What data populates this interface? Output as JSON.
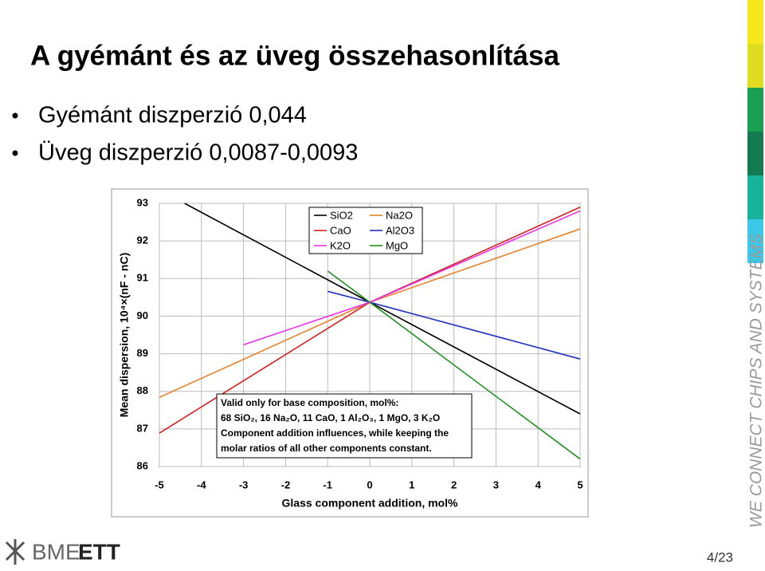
{
  "slide": {
    "title": "A gyémánt és az üveg összehasonlítása",
    "bullets": [
      "Gyémánt diszperzió 0,044",
      "Üveg diszperzió 0,0087-0,0093"
    ],
    "tagline": "WE CONNECT CHIPS AND SYSTEMS",
    "logo": [
      "BME",
      "ETT"
    ],
    "page": "4/23"
  },
  "chart_data": {
    "type": "line",
    "xlabel": "Glass component addition, mol%",
    "ylabel": "Mean dispersion, 10⁴×(nF - nC)",
    "xlim": [
      -5,
      5
    ],
    "ylim": [
      86,
      93
    ],
    "xticks": [
      -5,
      -4,
      -3,
      -2,
      -1,
      0,
      1,
      2,
      3,
      4,
      5
    ],
    "yticks": [
      86,
      87,
      88,
      89,
      90,
      91,
      92,
      93
    ],
    "grid": true,
    "series": [
      {
        "name": "SiO2",
        "color": "#000000",
        "x": [
          -4.4,
          0,
          5
        ],
        "values": [
          93.0,
          90.37,
          87.4
        ]
      },
      {
        "name": "Na2O",
        "color": "#e8822a",
        "x": [
          -5,
          0,
          5
        ],
        "values": [
          87.84,
          90.37,
          92.32
        ]
      },
      {
        "name": "CaO",
        "color": "#d42020",
        "x": [
          -5,
          0,
          5
        ],
        "values": [
          86.89,
          90.37,
          92.9
        ]
      },
      {
        "name": "Al2O3",
        "color": "#2030c0",
        "x": [
          -1,
          0,
          5
        ],
        "values": [
          90.66,
          90.37,
          88.86
        ]
      },
      {
        "name": "K2O",
        "color": "#e830e8",
        "x": [
          -3,
          0,
          5
        ],
        "values": [
          89.24,
          90.37,
          92.8
        ]
      },
      {
        "name": "MgO",
        "color": "#209020",
        "x": [
          -1,
          0,
          5
        ],
        "values": [
          91.2,
          90.37,
          86.2
        ]
      }
    ],
    "annotation": [
      "Valid only for base composition, mol%:",
      "68 SiO₂, 16 Na₂O, 11 CaO, 1 Al₂O₃, 1 MgO, 3 K₂O",
      "Component addition influences, while keeping the",
      "molar ratios of all other components constant."
    ]
  }
}
